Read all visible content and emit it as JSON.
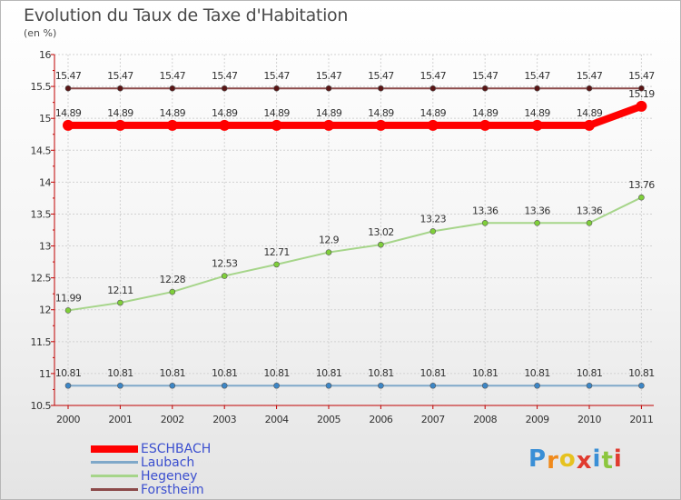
{
  "title": "Evolution du Taux de Taxe d'Habitation",
  "unit_label": "(en %)",
  "logo": {
    "text": "Proxiti",
    "colors": [
      "#3a8fd6",
      "#f08a1c",
      "#e6c21f",
      "#e03b2f",
      "#3a8fd6",
      "#8cc63e",
      "#e03b2f"
    ]
  },
  "chart_data": {
    "type": "line",
    "categories": [
      "2000",
      "2001",
      "2002",
      "2003",
      "2004",
      "2005",
      "2006",
      "2007",
      "2008",
      "2009",
      "2010",
      "2011"
    ],
    "ylim": [
      10.5,
      16
    ],
    "yticks": [
      "10.5",
      "11",
      "11.5",
      "12",
      "12.5",
      "13",
      "13.5",
      "14",
      "14.5",
      "15",
      "15.5",
      "16"
    ],
    "grid": true,
    "legend_position": "bottom-left",
    "series": [
      {
        "name": "ESCHBACH",
        "color": "#ff0000",
        "line_width": 8,
        "values": [
          14.89,
          14.89,
          14.89,
          14.89,
          14.89,
          14.89,
          14.89,
          14.89,
          14.89,
          14.89,
          14.89,
          15.19
        ],
        "labels": [
          "14.89",
          "14.89",
          "14.89",
          "14.89",
          "14.89",
          "14.89",
          "14.89",
          "14.89",
          "14.89",
          "14.89",
          "14.89",
          "15.19"
        ]
      },
      {
        "name": "Laubach",
        "color": "#7fa8c9",
        "point_color": "#3c86c6",
        "line_width": 2,
        "values": [
          10.81,
          10.81,
          10.81,
          10.81,
          10.81,
          10.81,
          10.81,
          10.81,
          10.81,
          10.81,
          10.81,
          10.81
        ],
        "labels": [
          "10.81",
          "10.81",
          "10.81",
          "10.81",
          "10.81",
          "10.81",
          "10.81",
          "10.81",
          "10.81",
          "10.81",
          "10.81",
          "10.81"
        ]
      },
      {
        "name": "Hegeney",
        "color": "#a6d58a",
        "point_color": "#7fcf3a",
        "line_width": 2,
        "values": [
          11.99,
          12.11,
          12.28,
          12.53,
          12.71,
          12.9,
          13.02,
          13.23,
          13.36,
          13.36,
          13.36,
          13.76
        ],
        "labels": [
          "11.99",
          "12.11",
          "12.28",
          "12.53",
          "12.71",
          "12.9",
          "13.02",
          "13.23",
          "13.36",
          "13.36",
          "13.36",
          "13.76"
        ]
      },
      {
        "name": "Forstheim",
        "color": "#8c4a4a",
        "point_color": "#5a1515",
        "line_width": 2,
        "values": [
          15.47,
          15.47,
          15.47,
          15.47,
          15.47,
          15.47,
          15.47,
          15.47,
          15.47,
          15.47,
          15.47,
          15.47
        ],
        "labels": [
          "15.47",
          "15.47",
          "15.47",
          "15.47",
          "15.47",
          "15.47",
          "15.47",
          "15.47",
          "15.47",
          "15.47",
          "15.47",
          "15.47"
        ]
      }
    ]
  }
}
